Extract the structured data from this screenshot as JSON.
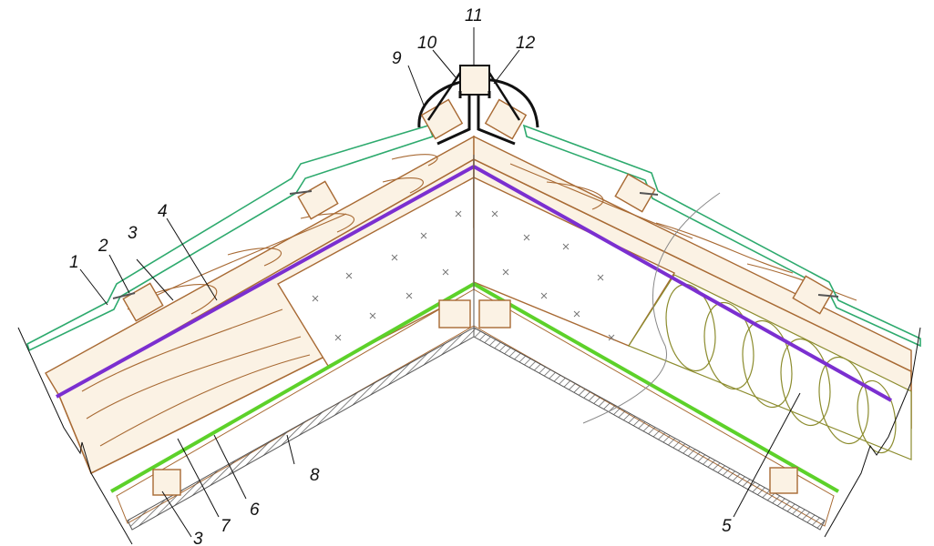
{
  "callouts": [
    {
      "id": "c1",
      "text": "1"
    },
    {
      "id": "c2",
      "text": "2"
    },
    {
      "id": "c3a",
      "text": "3"
    },
    {
      "id": "c4",
      "text": "4"
    },
    {
      "id": "c9",
      "text": "9"
    },
    {
      "id": "c10",
      "text": "10"
    },
    {
      "id": "c11",
      "text": "11"
    },
    {
      "id": "c12",
      "text": "12"
    },
    {
      "id": "c8",
      "text": "8"
    },
    {
      "id": "c6",
      "text": "6"
    },
    {
      "id": "c7",
      "text": "7"
    },
    {
      "id": "c3b",
      "text": "3"
    },
    {
      "id": "c5",
      "text": "5"
    }
  ],
  "colors": {
    "roofing_sheet": "#2eaa6e",
    "wood": "#a86a34",
    "wood_fill": "#fbf2e4",
    "membrane_top": "#7b2fd0",
    "vapor_barrier": "#5dd12a",
    "insulation": "#8c8c2e",
    "finish": "#555555",
    "outline": "#111111"
  }
}
